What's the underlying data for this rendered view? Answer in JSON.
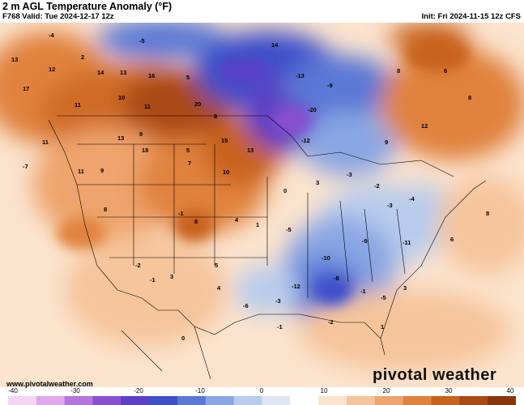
{
  "header": {
    "title": "2 m AGL Temperature Anomaly (°F)",
    "valid": "F768 Valid: Tue 2024-12-17 12z",
    "init": "Init: Fri 2024-11-15 12z CFS"
  },
  "branding": {
    "logo_text": "pivotal weather",
    "url": "www.pivotalweather.com"
  },
  "colorbar": {
    "tick_labels": [
      "-40",
      "-30",
      "-20",
      "-10",
      "0",
      "10",
      "20",
      "30",
      "40"
    ],
    "colors": [
      "#f4d4f4",
      "#e0a8ec",
      "#b774de",
      "#8a4fd0",
      "#5b3fc4",
      "#3d4fc9",
      "#5a78d6",
      "#8aa6e3",
      "#b8cced",
      "#dfe7f5",
      "#ffffff",
      "#fbe3cd",
      "#f6c59b",
      "#eea46c",
      "#e0823e",
      "#c8621d",
      "#a94a13",
      "#8a360d"
    ]
  },
  "anomaly_values": [
    {
      "t": "-4"
    },
    {
      "t": "13"
    },
    {
      "t": "12"
    },
    {
      "t": "17"
    },
    {
      "t": "2"
    },
    {
      "t": "14"
    },
    {
      "t": "13"
    },
    {
      "t": "16"
    },
    {
      "t": "5"
    },
    {
      "t": "-5"
    },
    {
      "t": "14"
    },
    {
      "t": "-13"
    },
    {
      "t": "-9"
    },
    {
      "t": "-20"
    },
    {
      "t": "8"
    },
    {
      "t": "6"
    },
    {
      "t": "8"
    },
    {
      "t": "11"
    },
    {
      "t": "10"
    },
    {
      "t": "11"
    },
    {
      "t": "20"
    },
    {
      "t": "13"
    },
    {
      "t": "8"
    },
    {
      "t": "12"
    },
    {
      "t": "9"
    },
    {
      "t": "5"
    },
    {
      "t": "18"
    },
    {
      "t": "15"
    },
    {
      "t": "13"
    },
    {
      "t": "-12"
    },
    {
      "t": "9"
    },
    {
      "t": "11"
    },
    {
      "t": "-7"
    },
    {
      "t": "11"
    },
    {
      "t": "9"
    },
    {
      "t": "7"
    },
    {
      "t": "10"
    },
    {
      "t": "8"
    },
    {
      "t": "-3"
    },
    {
      "t": "-2"
    },
    {
      "t": "0"
    },
    {
      "t": "3"
    },
    {
      "t": "-3"
    },
    {
      "t": "-4"
    },
    {
      "t": "4"
    },
    {
      "t": "8"
    },
    {
      "t": "-1"
    },
    {
      "t": "1"
    },
    {
      "t": "-5"
    },
    {
      "t": "-9"
    },
    {
      "t": "-11"
    },
    {
      "t": "-10"
    },
    {
      "t": "-8"
    },
    {
      "t": "-12"
    },
    {
      "t": "-6"
    },
    {
      "t": "5"
    },
    {
      "t": "-2"
    },
    {
      "t": "3"
    },
    {
      "t": "-1"
    },
    {
      "t": "4"
    },
    {
      "t": "-3"
    },
    {
      "t": "-1"
    },
    {
      "t": "-5"
    },
    {
      "t": "3"
    },
    {
      "t": "-2"
    },
    {
      "t": "8"
    },
    {
      "t": "6"
    },
    {
      "t": "1"
    },
    {
      "t": "0"
    },
    {
      "t": "-1"
    }
  ]
}
